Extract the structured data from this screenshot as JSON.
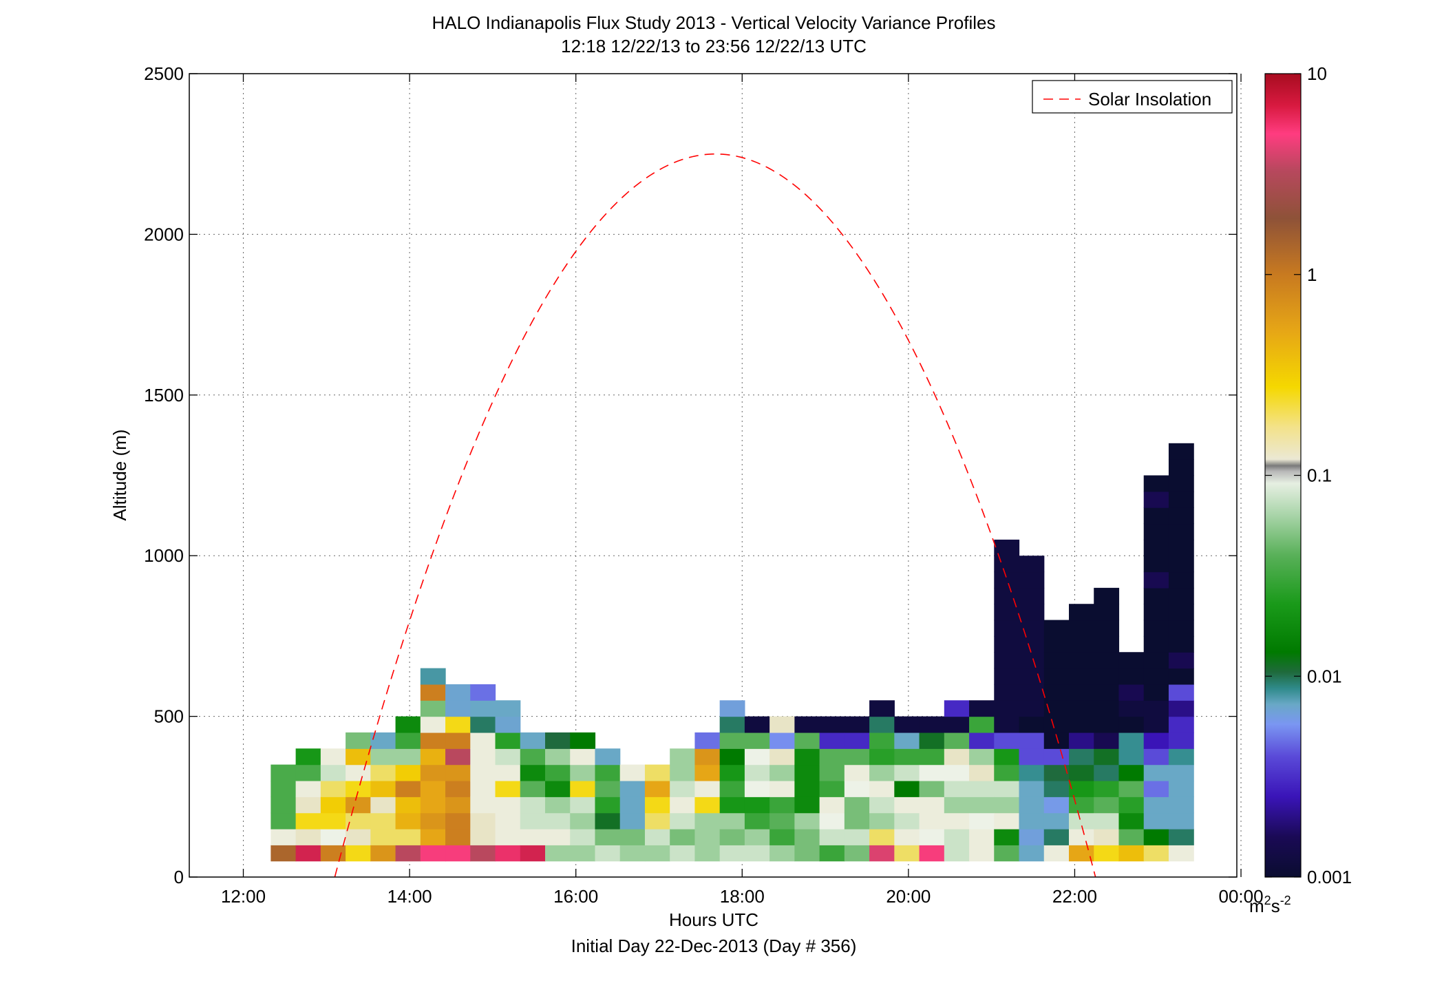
{
  "chart_data": {
    "type": "heatmap",
    "title": "HALO Indianapolis Flux Study 2013 - Vertical Velocity Variance Profiles",
    "subtitle": "12:18 12/22/13 to 23:56 12/22/13  UTC",
    "xlabel": "Hours UTC",
    "xlabel2": "Initial Day 22-Dec-2013 (Day # 356)",
    "ylabel": "Altitude (m)",
    "xlim": [
      11.35,
      23.95
    ],
    "ylim": [
      0,
      2500
    ],
    "x_ticks": [
      12,
      14,
      16,
      18,
      20,
      22,
      24
    ],
    "x_tick_labels": [
      "12:00",
      "14:00",
      "16:00",
      "18:00",
      "20:00",
      "22:00",
      "00:00"
    ],
    "y_ticks": [
      0,
      500,
      1000,
      1500,
      2000,
      2500
    ],
    "y_tick_labels": [
      "0",
      "500",
      "1000",
      "1500",
      "2000",
      "2500"
    ],
    "grid": true,
    "colorbar": {
      "scale": "log",
      "range": [
        0.001,
        10
      ],
      "tick_values": [
        0.001,
        0.01,
        0.1,
        1,
        10
      ],
      "tick_labels": [
        "0.001",
        "0.01",
        "0.1",
        "1",
        "10"
      ],
      "unit_base": "m",
      "unit_sup1": "2",
      "unit_mid": "s",
      "unit_sup2": "-2"
    },
    "legend": {
      "placement": "top-right",
      "entries": [
        "Solar Insolation"
      ]
    },
    "solar_insolation_curve": {
      "style": "dashed",
      "color": "#ff0000",
      "zero_hours": [
        13.1,
        22.25
      ],
      "peak_hour": 17.68,
      "peak_value": 2250
    },
    "cell_width_hours": 0.3,
    "cell_height_m": 50,
    "bottom_altitude_m": 50,
    "profiles": [
      {
        "t": 12.48,
        "v": [
          2.0,
          0.3,
          0.09,
          0.09,
          0.09,
          0.09
        ]
      },
      {
        "t": 12.78,
        "v": [
          8.0,
          0.4,
          0.6,
          0.4,
          0.3,
          0.09,
          0.06
        ]
      },
      {
        "t": 13.08,
        "v": [
          1.5,
          0.25,
          0.6,
          0.7,
          0.5,
          0.2,
          0.3
        ]
      },
      {
        "t": 13.38,
        "v": [
          0.6,
          0.4,
          0.5,
          1.2,
          0.6,
          0.3,
          0.8,
          0.12
        ]
      },
      {
        "t": 13.68,
        "v": [
          1.2,
          0.5,
          0.5,
          0.4,
          0.8,
          0.5,
          0.15,
          0.01
        ]
      },
      {
        "t": 13.98,
        "v": [
          4.0,
          0.5,
          0.9,
          0.8,
          1.5,
          0.7,
          0.15,
          0.08,
          0.05
        ]
      },
      {
        "t": 14.28,
        "v": [
          6.0,
          1.0,
          1.2,
          1.0,
          1.0,
          1.2,
          0.9,
          1.5,
          0.3,
          0.12,
          1.5,
          0.013
        ]
      },
      {
        "t": 14.58,
        "v": [
          6.0,
          1.5,
          1.5,
          1.2,
          1.5,
          1.2,
          4.0,
          1.5,
          0.6,
          0.009,
          0.009
        ]
      },
      {
        "t": 14.88,
        "v": [
          4.0,
          0.4,
          0.4,
          0.3,
          0.3,
          0.3,
          0.3,
          0.3,
          0.02,
          0.01,
          0.005
        ]
      },
      {
        "t": 15.18,
        "v": [
          7.0,
          0.3,
          0.3,
          0.3,
          0.6,
          0.3,
          0.2,
          0.07,
          0.009,
          0.01
        ]
      },
      {
        "t": 15.48,
        "v": [
          8.0,
          0.3,
          0.2,
          0.2,
          0.1,
          0.05,
          0.09,
          0.01
        ]
      },
      {
        "t": 15.78,
        "v": [
          0.15,
          0.3,
          0.2,
          0.15,
          0.05,
          0.08,
          0.15,
          0.025
        ]
      },
      {
        "t": 16.08,
        "v": [
          0.15,
          0.2,
          0.15,
          0.2,
          0.6,
          0.15,
          0.3,
          0.04
        ]
      },
      {
        "t": 16.38,
        "v": [
          0.2,
          0.12,
          0.03,
          0.07,
          0.1,
          0.08,
          0.01
        ]
      },
      {
        "t": 16.68,
        "v": [
          0.15,
          0.12,
          0.01,
          0.01,
          0.01,
          0.3
        ]
      },
      {
        "t": 16.98,
        "v": [
          0.15,
          0.2,
          0.5,
          0.6,
          1.0,
          0.5
        ]
      },
      {
        "t": 17.28,
        "v": [
          0.2,
          0.12,
          0.2,
          0.3,
          0.2,
          0.15,
          0.15
        ]
      },
      {
        "t": 17.58,
        "v": [
          0.15,
          0.15,
          0.15,
          0.6,
          0.3,
          1.0,
          1.2,
          0.005
        ]
      },
      {
        "t": 17.88,
        "v": [
          0.2,
          0.12,
          0.15,
          0.06,
          0.08,
          0.06,
          0.04,
          0.1,
          0.02,
          0.008
        ]
      },
      {
        "t": 18.18,
        "v": [
          0.2,
          0.15,
          0.08,
          0.06,
          0.25,
          0.2,
          0.25,
          0.1,
          0.0012
        ]
      },
      {
        "t": 18.48,
        "v": [
          0.15,
          0.08,
          0.1,
          0.08,
          0.3,
          0.15,
          0.4,
          0.006,
          0.4
        ]
      },
      {
        "t": 18.78,
        "v": [
          0.12,
          0.12,
          0.15,
          0.05,
          0.05,
          0.05,
          0.05,
          0.1,
          0.0012
        ]
      },
      {
        "t": 19.08,
        "v": [
          0.08,
          0.2,
          0.25,
          0.3,
          0.08,
          0.1,
          0.1,
          0.003,
          0.0012
        ]
      },
      {
        "t": 19.38,
        "v": [
          0.12,
          0.2,
          0.12,
          0.12,
          0.25,
          0.3,
          0.1,
          0.003,
          0.0012
        ]
      },
      {
        "t": 19.68,
        "v": [
          5.0,
          0.5,
          0.15,
          0.2,
          0.3,
          0.15,
          0.07,
          0.08,
          0.02,
          0.0012
        ]
      },
      {
        "t": 19.98,
        "v": [
          0.5,
          0.3,
          0.2,
          0.3,
          0.04,
          0.2,
          0.08,
          0.01,
          0.0012
        ]
      },
      {
        "t": 20.28,
        "v": [
          6.0,
          0.25,
          0.3,
          0.3,
          0.12,
          0.25,
          0.08,
          0.03,
          0.0012
        ]
      },
      {
        "t": 20.58,
        "v": [
          0.2,
          0.2,
          0.3,
          0.15,
          0.2,
          0.25,
          0.4,
          0.1,
          0.0012,
          0.003
        ]
      },
      {
        "t": 20.88,
        "v": [
          0.3,
          0.3,
          0.25,
          0.15,
          0.2,
          0.4,
          0.15,
          0.003,
          0.08,
          0.0012
        ]
      },
      {
        "t": 21.18,
        "v": [
          0.1,
          0.05,
          0.3,
          0.15,
          0.2,
          0.08,
          0.06,
          0.004,
          0.0012,
          0.0012,
          0.0012,
          0.0012,
          0.0012,
          0.0012,
          0.0012,
          0.0012,
          0.0012,
          0.0012,
          0.0012,
          0.0012
        ]
      },
      {
        "t": 21.48,
        "v": [
          0.01,
          0.008,
          0.01,
          0.01,
          0.01,
          0.015,
          0.004,
          0.004,
          0.001,
          0.0012,
          0.0012,
          0.0012,
          0.0012,
          0.0012,
          0.0012,
          0.0012,
          0.0012,
          0.0012,
          0.0012
        ]
      },
      {
        "t": 21.78,
        "v": [
          0.3,
          0.02,
          0.01,
          0.007,
          0.02,
          0.025,
          0.004,
          0.001,
          0.001,
          0.001,
          0.001,
          0.001,
          0.001,
          0.001,
          0.001
        ]
      },
      {
        "t": 22.08,
        "v": [
          1.0,
          0.3,
          0.2,
          0.08,
          0.06,
          0.03,
          0.02,
          0.002,
          0.001,
          0.001,
          0.001,
          0.001,
          0.001,
          0.001,
          0.001,
          0.001
        ]
      },
      {
        "t": 22.38,
        "v": [
          0.6,
          0.4,
          0.2,
          0.1,
          0.07,
          0.02,
          0.03,
          0.0015,
          0.001,
          0.001,
          0.001,
          0.001,
          0.001,
          0.001,
          0.001,
          0.001,
          0.001
        ]
      },
      {
        "t": 22.68,
        "v": [
          0.8,
          0.1,
          0.05,
          0.07,
          0.1,
          0.04,
          0.015,
          0.015,
          0.001,
          0.0012,
          0.0015,
          0.001,
          0.001
        ]
      },
      {
        "t": 22.98,
        "v": [
          0.5,
          0.04,
          0.01,
          0.01,
          0.005,
          0.01,
          0.004,
          0.0025,
          0.0012,
          0.0012,
          0.001,
          0.001,
          0.001,
          0.001,
          0.001,
          0.001,
          0.001,
          0.0015,
          0.001,
          0.001,
          0.001,
          0.001,
          0.0015,
          0.001
        ]
      },
      {
        "t": 23.28,
        "v": [
          0.3,
          0.02,
          0.01,
          0.01,
          0.01,
          0.01,
          0.015,
          0.003,
          0.003,
          0.002,
          0.004,
          0.001,
          0.0015,
          0.001,
          0.001,
          0.001,
          0.001,
          0.001,
          0.001,
          0.001,
          0.001,
          0.001,
          0.001,
          0.001,
          0.001,
          0.001
        ]
      }
    ]
  },
  "colors": {
    "colormap": [
      "#0a0d30",
      "#1a0a55",
      "#3a14b8",
      "#5a4ad8",
      "#7a96f2",
      "#69a8c6",
      "#2f8a8a",
      "#1f6a3c",
      "#007a00",
      "#1a9a1a",
      "#58b058",
      "#a8d4a8",
      "#eef2e8",
      "#e8e4c8",
      "#f5d800",
      "#e6a616",
      "#c87a20",
      "#8e5238",
      "#b8485e",
      "#ff3c80",
      "#a80c20"
    ],
    "solar": "#ff0000",
    "grid": "#666666"
  }
}
